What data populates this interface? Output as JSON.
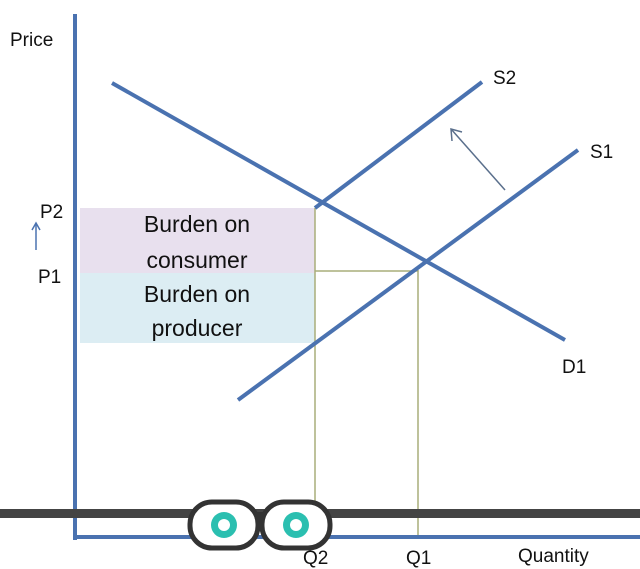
{
  "axes": {
    "y_label": "Price",
    "x_label": "Quantity"
  },
  "curves": {
    "s2": "S2",
    "s1": "S1",
    "d1": "D1"
  },
  "prices": {
    "p2": "P2",
    "p1": "P1"
  },
  "quantities": {
    "q2": "Q2",
    "q1": "Q1"
  },
  "boxes": {
    "consumer": [
      "Burden on",
      "consumer"
    ],
    "producer": [
      "Burden on",
      "producer"
    ]
  }
}
